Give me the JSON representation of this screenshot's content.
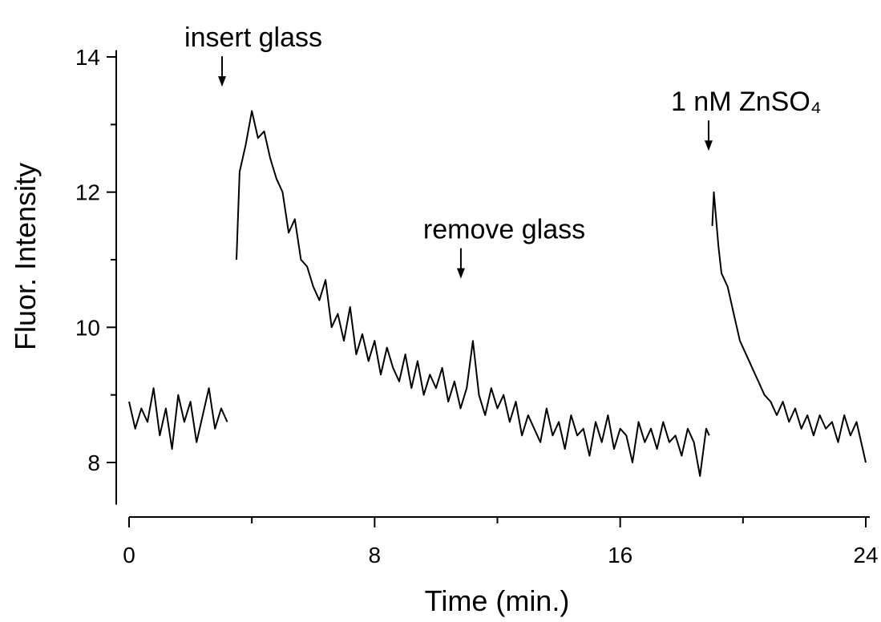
{
  "chart_data": {
    "type": "line",
    "xlabel": "Time (min.)",
    "ylabel": "Fluor. Intensity",
    "xlim": [
      0,
      24
    ],
    "ylim": [
      7.4,
      14.1
    ],
    "xticks": [
      0,
      8,
      16,
      24
    ],
    "yticks": [
      8,
      10,
      12,
      14
    ],
    "xminorticks": [
      4,
      12,
      20
    ],
    "yminorticks": [
      9,
      11,
      13
    ],
    "annotations": [
      {
        "text": "insert glass",
        "x": 3.03,
        "y": 13.56
      },
      {
        "text": "remove glass",
        "x": 10.81,
        "y": 10.72
      },
      {
        "text": "1 nM ZnSO₄",
        "x": 18.88,
        "y": 12.61
      }
    ],
    "x": [
      0,
      0.2,
      0.4,
      0.6,
      0.8,
      1.0,
      1.2,
      1.4,
      1.6,
      1.8,
      2.0,
      2.2,
      2.4,
      2.6,
      2.8,
      3.0,
      3.2,
      3.35,
      3.5,
      3.6,
      3.8,
      4.0,
      4.2,
      4.4,
      4.6,
      4.8,
      5.0,
      5.2,
      5.4,
      5.6,
      5.8,
      6.0,
      6.2,
      6.4,
      6.6,
      6.8,
      7.0,
      7.2,
      7.4,
      7.6,
      7.8,
      8.0,
      8.2,
      8.4,
      8.6,
      8.8,
      9.0,
      9.2,
      9.4,
      9.6,
      9.8,
      10.0,
      10.2,
      10.4,
      10.6,
      10.8,
      11.0,
      11.2,
      11.4,
      11.6,
      11.8,
      12.0,
      12.2,
      12.4,
      12.6,
      12.8,
      13.0,
      13.2,
      13.4,
      13.6,
      13.8,
      14.0,
      14.2,
      14.4,
      14.6,
      14.8,
      15.0,
      15.2,
      15.4,
      15.6,
      15.8,
      16.0,
      16.2,
      16.4,
      16.6,
      16.8,
      17.0,
      17.2,
      17.4,
      17.6,
      17.8,
      18.0,
      18.2,
      18.4,
      18.6,
      18.8,
      18.9,
      18.95,
      19.0,
      19.05,
      19.2,
      19.3,
      19.5,
      19.7,
      19.9,
      20.1,
      20.3,
      20.5,
      20.7,
      20.9,
      21.1,
      21.3,
      21.5,
      21.7,
      21.9,
      22.1,
      22.3,
      22.5,
      22.7,
      22.9,
      23.1,
      23.3,
      23.5,
      23.7,
      23.9,
      24.0
    ],
    "series": [
      {
        "name": "Fluor. Intensity",
        "color": "#000000",
        "values": [
          8.9,
          8.5,
          8.8,
          8.6,
          9.1,
          8.4,
          8.8,
          8.2,
          9.0,
          8.6,
          8.9,
          8.3,
          8.7,
          9.1,
          8.5,
          8.8,
          8.6,
          null,
          11.0,
          12.3,
          12.7,
          13.2,
          12.8,
          12.9,
          12.5,
          12.2,
          12.0,
          11.4,
          11.6,
          11.0,
          10.9,
          10.6,
          10.4,
          10.7,
          10.0,
          10.2,
          9.8,
          10.3,
          9.6,
          9.9,
          9.5,
          9.8,
          9.3,
          9.7,
          9.4,
          9.2,
          9.6,
          9.1,
          9.5,
          9.0,
          9.3,
          9.1,
          9.4,
          8.9,
          9.2,
          8.8,
          9.1,
          9.8,
          9.0,
          8.7,
          9.1,
          8.8,
          9.0,
          8.6,
          8.9,
          8.4,
          8.7,
          8.5,
          8.3,
          8.8,
          8.4,
          8.6,
          8.2,
          8.7,
          8.4,
          8.5,
          8.1,
          8.6,
          8.3,
          8.7,
          8.2,
          8.5,
          8.4,
          8.0,
          8.6,
          8.3,
          8.5,
          8.2,
          8.6,
          8.3,
          8.4,
          8.1,
          8.5,
          8.3,
          7.8,
          8.5,
          8.4,
          null,
          11.5,
          12.0,
          11.2,
          10.8,
          10.6,
          10.2,
          9.8,
          9.6,
          9.4,
          9.2,
          9.0,
          8.9,
          8.7,
          8.9,
          8.6,
          8.8,
          8.5,
          8.7,
          8.4,
          8.7,
          8.5,
          8.6,
          8.3,
          8.7,
          8.4,
          8.6,
          8.2,
          8.0
        ]
      }
    ]
  }
}
